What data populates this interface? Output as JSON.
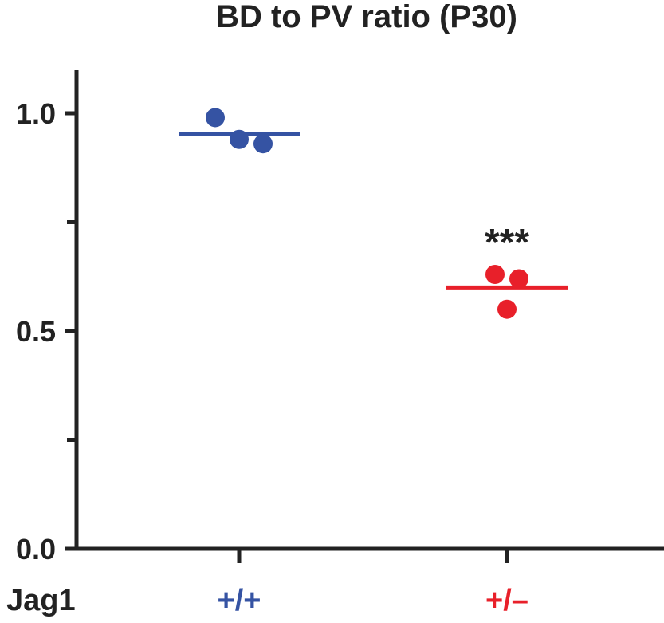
{
  "chart_data": {
    "type": "scatter",
    "title": "BD to PV ratio (P30)",
    "xlabel": "Jag1",
    "ylabel": "",
    "ylim": [
      0,
      1.1
    ],
    "yticks_major": [
      0.0,
      0.5,
      1.0
    ],
    "yticks_major_labels": [
      "0.0",
      "0.5",
      "1.0"
    ],
    "yticks_minor": [
      0.25,
      0.75
    ],
    "grid": false,
    "categories": [
      "+/+",
      "+/–"
    ],
    "series": [
      {
        "category": "+/+",
        "color": "#3553a3",
        "points": [
          0.99,
          0.94,
          0.93
        ],
        "mean": 0.953
      },
      {
        "category": "+/–",
        "color": "#e8202a",
        "points": [
          0.63,
          0.62,
          0.55
        ],
        "mean": 0.6,
        "annotation": "***"
      }
    ],
    "axis_color": "#222222"
  }
}
